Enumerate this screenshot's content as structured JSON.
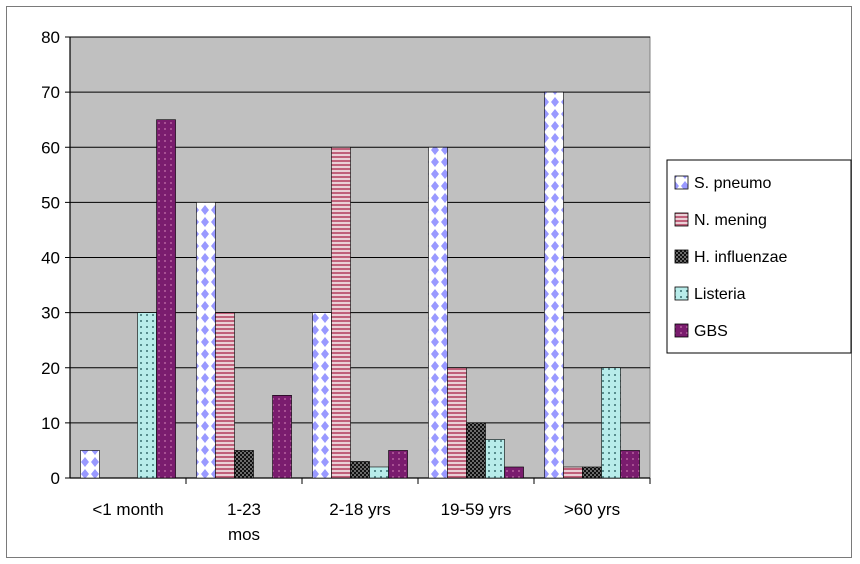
{
  "chart_data": {
    "type": "bar",
    "title": "",
    "xlabel": "",
    "ylabel": "",
    "ylim": [
      0,
      80
    ],
    "yticks": [
      "0",
      "10",
      "20",
      "30",
      "40",
      "50",
      "60",
      "70",
      "80"
    ],
    "grid": true,
    "legend_position": "right",
    "plot_background": "#c0c0c0",
    "categories": [
      [
        "<1 month"
      ],
      [
        "1-23",
        "mos"
      ],
      [
        "2-18 yrs"
      ],
      [
        "19-59 yrs"
      ],
      [
        ">60 yrs"
      ]
    ],
    "series": [
      {
        "name": "S. pneumo",
        "values": [
          5,
          50,
          30,
          60,
          70
        ],
        "color": "#9999ff",
        "pattern": "diamonds"
      },
      {
        "name": "N. mening",
        "values": [
          0,
          30,
          60,
          20,
          2
        ],
        "color": "#c0607a",
        "pattern": "hlines"
      },
      {
        "name": "H. influenzae",
        "values": [
          0,
          5,
          3,
          10,
          2
        ],
        "color": "#101010",
        "pattern": "checker"
      },
      {
        "name": "Listeria",
        "values": [
          30,
          0,
          2,
          7,
          20
        ],
        "color": "#a6e3e0",
        "pattern": "dots"
      },
      {
        "name": "GBS",
        "values": [
          65,
          15,
          5,
          2,
          5
        ],
        "color": "#7a1c6e",
        "pattern": "dots-dark"
      }
    ]
  }
}
